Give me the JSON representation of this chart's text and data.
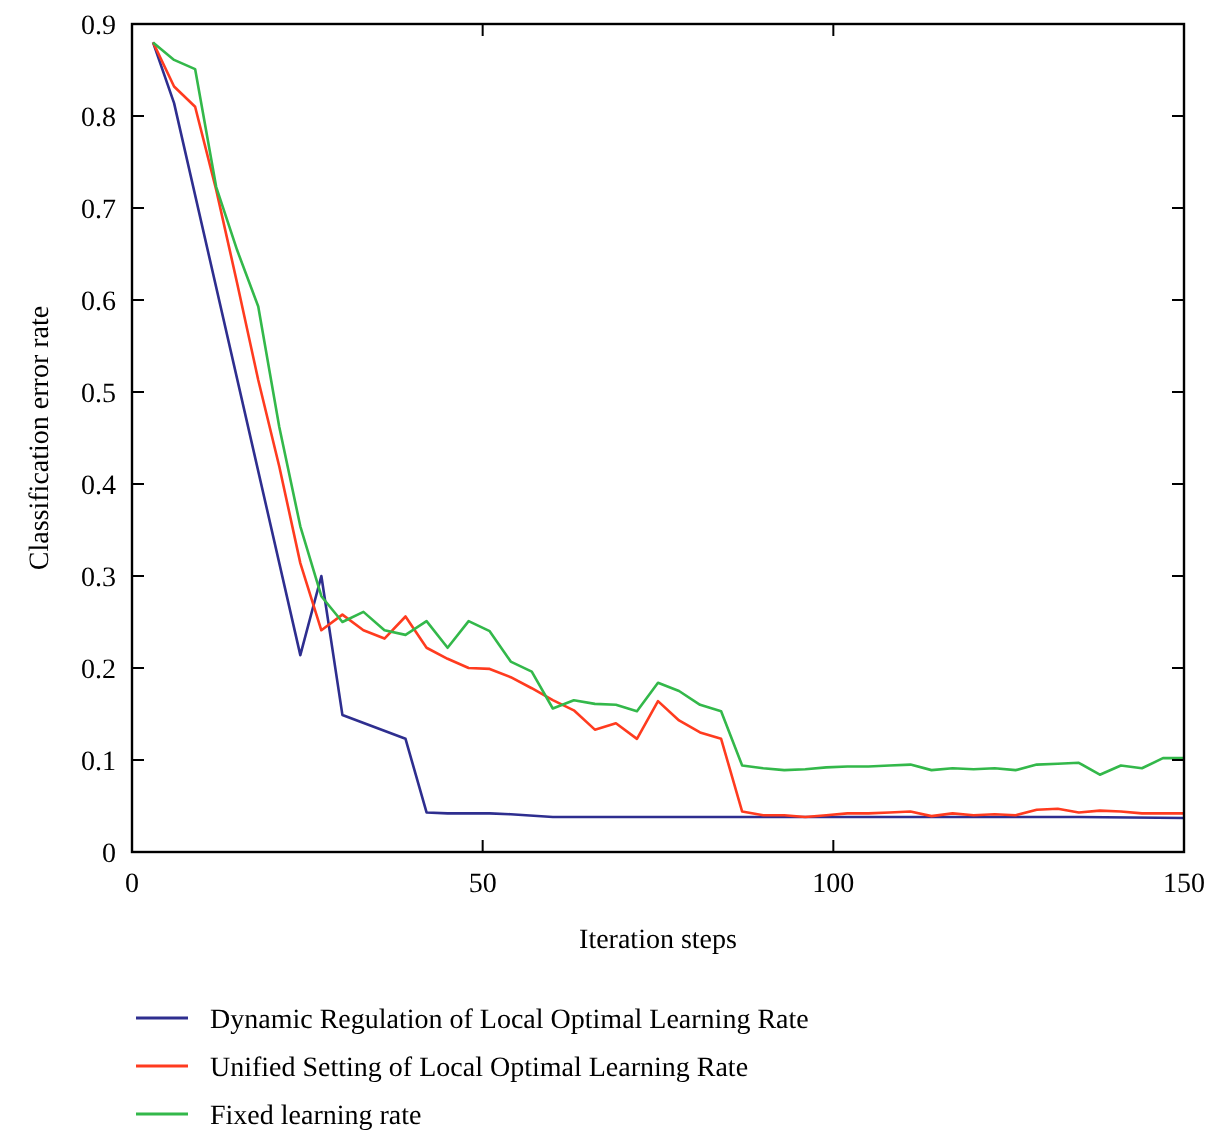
{
  "chart_data": {
    "type": "line",
    "xlabel": "Iteration steps",
    "ylabel": "Classification error rate",
    "xlim": [
      0,
      150
    ],
    "xticks": [
      0,
      50,
      100,
      150
    ],
    "ylim": [
      0,
      0.9
    ],
    "yticks": [
      0,
      0.1,
      0.2,
      0.3,
      0.4,
      0.5,
      0.6,
      0.7,
      0.8,
      0.9
    ],
    "grid": false,
    "legend": "bottom",
    "line_style": "solid",
    "series": [
      {
        "name": "Dynamic Regulation of Local Optimal Learning Rate",
        "color": "#2e2e8f",
        "x": [
          3,
          6,
          24,
          27,
          30,
          39,
          42,
          45,
          51,
          54,
          60,
          75,
          90,
          105,
          120,
          135,
          150
        ],
        "values": [
          0.88,
          0.814,
          0.214,
          0.3,
          0.149,
          0.123,
          0.043,
          0.042,
          0.042,
          0.041,
          0.038,
          0.038,
          0.038,
          0.038,
          0.038,
          0.038,
          0.037
        ]
      },
      {
        "name": "Unified Setting of Local Optimal Learning Rate",
        "color": "#ff3b1f",
        "x": [
          3,
          6,
          9,
          12,
          15,
          18,
          21,
          24,
          27,
          30,
          33,
          36,
          39,
          42,
          45,
          48,
          51,
          54,
          57,
          60,
          63,
          66,
          69,
          72,
          75,
          78,
          81,
          84,
          87,
          90,
          93,
          96,
          99,
          102,
          105,
          108,
          111,
          114,
          117,
          120,
          123,
          126,
          129,
          132,
          135,
          138,
          141,
          144,
          147,
          150
        ],
        "values": [
          0.88,
          0.832,
          0.81,
          0.72,
          0.618,
          0.513,
          0.419,
          0.314,
          0.241,
          0.258,
          0.241,
          0.232,
          0.256,
          0.222,
          0.21,
          0.2,
          0.199,
          0.19,
          0.178,
          0.165,
          0.154,
          0.133,
          0.14,
          0.123,
          0.164,
          0.143,
          0.13,
          0.123,
          0.044,
          0.04,
          0.04,
          0.038,
          0.04,
          0.042,
          0.042,
          0.043,
          0.044,
          0.039,
          0.042,
          0.04,
          0.041,
          0.04,
          0.046,
          0.047,
          0.043,
          0.045,
          0.044,
          0.042,
          0.042,
          0.042
        ]
      },
      {
        "name": "Fixed learning rate",
        "color": "#33b84a",
        "x": [
          3,
          6,
          9,
          12,
          15,
          18,
          21,
          24,
          27,
          30,
          33,
          36,
          39,
          42,
          45,
          48,
          51,
          54,
          57,
          60,
          63,
          66,
          69,
          72,
          75,
          78,
          81,
          84,
          87,
          90,
          93,
          96,
          99,
          102,
          105,
          108,
          111,
          114,
          117,
          120,
          123,
          126,
          129,
          132,
          135,
          138,
          141,
          144,
          147,
          150
        ],
        "values": [
          0.88,
          0.861,
          0.851,
          0.723,
          0.654,
          0.593,
          0.462,
          0.354,
          0.278,
          0.25,
          0.261,
          0.241,
          0.236,
          0.251,
          0.222,
          0.251,
          0.24,
          0.207,
          0.196,
          0.156,
          0.165,
          0.161,
          0.16,
          0.153,
          0.184,
          0.175,
          0.16,
          0.153,
          0.094,
          0.091,
          0.089,
          0.09,
          0.092,
          0.093,
          0.093,
          0.094,
          0.095,
          0.089,
          0.091,
          0.09,
          0.091,
          0.089,
          0.095,
          0.096,
          0.097,
          0.084,
          0.094,
          0.091,
          0.102,
          0.102
        ]
      }
    ]
  }
}
